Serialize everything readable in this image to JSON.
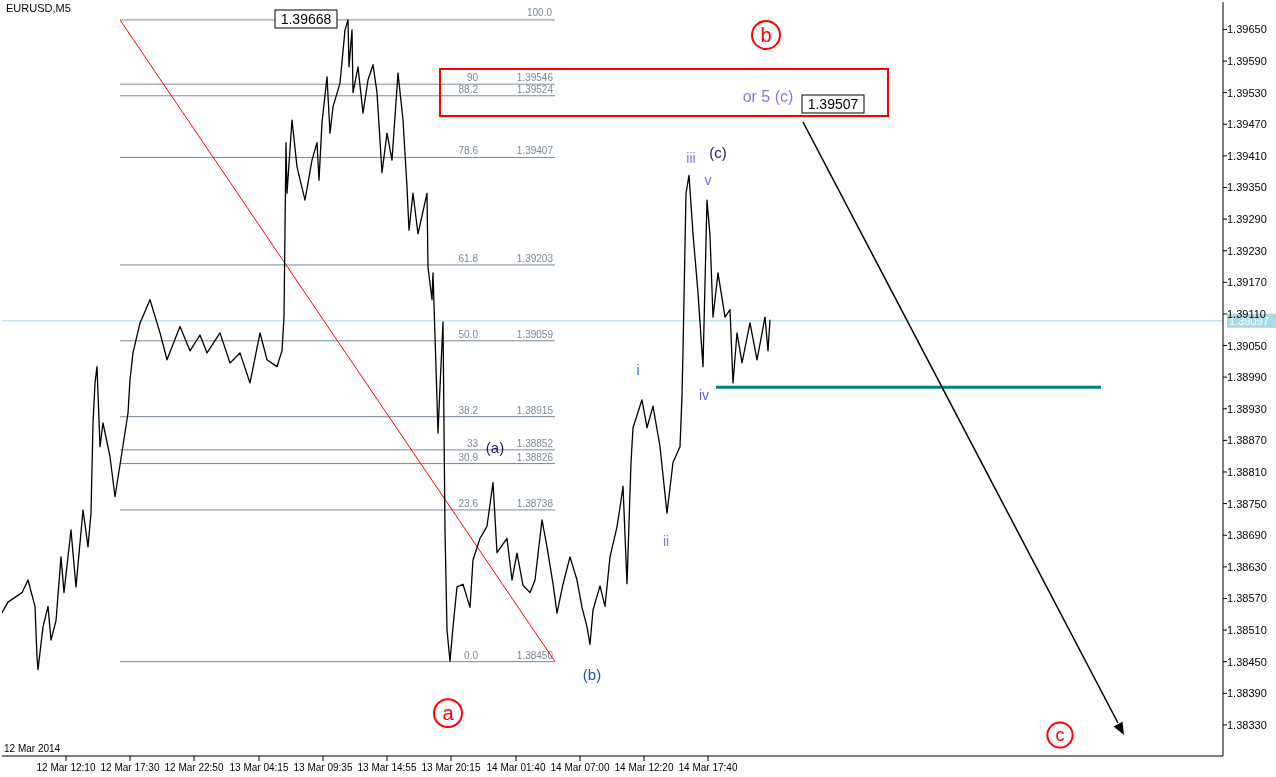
{
  "chart_data": {
    "type": "line",
    "title": "EURUSD,M5",
    "xlim": [
      "2014-03-12T06:50",
      "2014-03-16T12:35"
    ],
    "xticks": [
      {
        "value": "2014-03-12T12:10",
        "label": "12 Mar 12:10"
      },
      {
        "value": "2014-03-12T17:30",
        "label": "12 Mar 17:30"
      },
      {
        "value": "2014-03-12T22:50",
        "label": "12 Mar 22:50"
      },
      {
        "value": "2014-03-13T04:15",
        "label": "13 Mar 04:15"
      },
      {
        "value": "2014-03-13T09:35",
        "label": "13 Mar 09:35"
      },
      {
        "value": "2014-03-13T14:55",
        "label": "13 Mar 14:55"
      },
      {
        "value": "2014-03-13T20:15",
        "label": "13 Mar 20:15"
      },
      {
        "value": "2014-03-14T01:40",
        "label": "14 Mar 01:40"
      },
      {
        "value": "2014-03-14T07:00",
        "label": "14 Mar 07:00"
      },
      {
        "value": "2014-03-14T12:20",
        "label": "14 Mar 12:20"
      },
      {
        "value": "2014-03-14T17:40",
        "label": "14 Mar 17:40"
      }
    ],
    "ylim": [
      1.38271,
      1.39702
    ],
    "yticks": [
      {
        "value": 1.3833,
        "label": "1.38330"
      },
      {
        "value": 1.3839,
        "label": "1.38390"
      },
      {
        "value": 1.3845,
        "label": "1.38450"
      },
      {
        "value": 1.3851,
        "label": "1.38510"
      },
      {
        "value": 1.3857,
        "label": "1.38570"
      },
      {
        "value": 1.3863,
        "label": "1.38630"
      },
      {
        "value": 1.3869,
        "label": "1.38690"
      },
      {
        "value": 1.3875,
        "label": "1.38750"
      },
      {
        "value": 1.3881,
        "label": "1.38810"
      },
      {
        "value": 1.3887,
        "label": "1.38870"
      },
      {
        "value": 1.3893,
        "label": "1.38930"
      },
      {
        "value": 1.3899,
        "label": "1.38990"
      },
      {
        "value": 1.3905,
        "label": "1.39050"
      },
      {
        "value": 1.3911,
        "label": "1.39110"
      },
      {
        "value": 1.3917,
        "label": "1.39170"
      },
      {
        "value": 1.3923,
        "label": "1.39230"
      },
      {
        "value": 1.3929,
        "label": "1.39290"
      },
      {
        "value": 1.3935,
        "label": "1.39350"
      },
      {
        "value": 1.3941,
        "label": "1.39410"
      },
      {
        "value": 1.3947,
        "label": "1.39470"
      },
      {
        "value": 1.3953,
        "label": "1.39530"
      },
      {
        "value": 1.3959,
        "label": "1.39590"
      },
      {
        "value": 1.3965,
        "label": "1.39650"
      }
    ],
    "series": [
      {
        "color": "#add8e6",
        "x": [
          "2014-03-12T06:50",
          "2014-03-16T12:35"
        ],
        "values": [
          1.39097,
          1.39097
        ]
      },
      {
        "color": "#ff0000",
        "x": [
          "2014-03-12T16:40",
          "2014-03-14T04:55"
        ],
        "values": [
          1.39668,
          1.3845
        ]
      },
      {
        "color": "#008080",
        "x": [
          "2014-03-14T18:20",
          "2014-03-16T02:25"
        ],
        "values": [
          1.38971,
          1.38971
        ]
      },
      {
        "color": "#000000",
        "x": [
          "2014-03-12T06:50",
          "2014-03-12T07:20",
          "2014-03-12T08:30",
          "2014-03-12T09:00",
          "2014-03-12T09:35",
          "2014-03-12T09:45",
          "2014-03-12T09:50",
          "2014-03-12T10:15",
          "2014-03-12T10:40",
          "2014-03-12T10:55",
          "2014-03-12T11:20",
          "2014-03-12T11:45",
          "2014-03-12T12:00",
          "2014-03-12T12:35",
          "2014-03-12T12:45",
          "2014-03-12T13:00",
          "2014-03-12T13:35",
          "2014-03-12T14:00",
          "2014-03-12T14:15",
          "2014-03-12T14:25",
          "2014-03-12T14:35",
          "2014-03-12T14:45",
          "2014-03-12T15:00",
          "2014-03-12T15:15",
          "2014-03-12T15:50",
          "2014-03-12T16:15",
          "2014-03-12T16:50",
          "2014-03-12T17:20",
          "2014-03-12T17:30",
          "2014-03-12T17:45",
          "2014-03-12T18:20",
          "2014-03-12T19:10",
          "2014-03-12T20:00",
          "2014-03-12T20:35",
          "2014-03-12T21:40",
          "2014-03-12T22:30",
          "2014-03-12T23:20",
          "2014-03-12T23:55",
          "2014-03-13T01:00",
          "2014-03-13T01:50",
          "2014-03-13T02:40",
          "2014-03-13T03:30",
          "2014-03-13T04:20",
          "2014-03-13T04:55",
          "2014-03-13T05:45",
          "2014-03-13T06:10",
          "2014-03-13T06:20",
          "2014-03-13T06:30",
          "2014-03-13T06:35",
          "2014-03-13T07:00",
          "2014-03-13T07:25",
          "2014-03-13T08:05",
          "2014-03-13T08:40",
          "2014-03-13T09:05",
          "2014-03-13T09:15",
          "2014-03-13T09:30",
          "2014-03-13T09:55",
          "2014-03-13T10:10",
          "2014-03-13T10:25",
          "2014-03-13T11:00",
          "2014-03-13T11:25",
          "2014-03-13T11:40",
          "2014-03-13T11:45",
          "2014-03-13T12:00",
          "2014-03-13T12:05",
          "2014-03-13T12:30",
          "2014-03-13T12:55",
          "2014-03-13T13:20",
          "2014-03-13T13:45",
          "2014-03-13T14:05",
          "2014-03-13T14:30",
          "2014-03-13T14:55",
          "2014-03-13T15:20",
          "2014-03-13T15:50",
          "2014-03-13T16:15",
          "2014-03-13T16:35",
          "2014-03-13T16:45",
          "2014-03-13T17:05",
          "2014-03-13T17:30",
          "2014-03-13T18:15",
          "2014-03-13T18:20",
          "2014-03-13T18:40",
          "2014-03-13T18:45",
          "2014-03-13T19:05",
          "2014-03-13T19:10",
          "2014-03-13T19:20",
          "2014-03-13T19:35",
          "2014-03-13T19:45",
          "2014-03-13T19:55",
          "2014-03-13T20:10",
          "2014-03-13T20:25",
          "2014-03-13T20:45",
          "2014-03-13T21:15",
          "2014-03-13T21:50",
          "2014-03-13T22:05",
          "2014-03-13T22:40",
          "2014-03-13T23:15",
          "2014-03-13T23:45",
          "2014-03-14T00:05",
          "2014-03-14T00:55",
          "2014-03-14T01:20",
          "2014-03-14T01:45",
          "2014-03-14T02:15",
          "2014-03-14T02:50",
          "2014-03-14T03:15",
          "2014-03-14T03:50",
          "2014-03-14T04:15",
          "2014-03-14T04:45",
          "2014-03-14T05:05",
          "2014-03-14T05:35",
          "2014-03-14T06:10",
          "2014-03-14T06:45",
          "2014-03-14T07:10",
          "2014-03-14T07:35",
          "2014-03-14T07:50",
          "2014-03-14T08:05",
          "2014-03-14T08:40",
          "2014-03-14T09:05",
          "2014-03-14T09:30",
          "2014-03-14T10:05",
          "2014-03-14T10:20",
          "2014-03-14T10:35",
          "2014-03-14T10:55",
          "2014-03-14T11:15",
          "2014-03-14T11:25",
          "2014-03-14T12:10",
          "2014-03-14T12:35",
          "2014-03-14T13:05",
          "2014-03-14T13:40",
          "2014-03-14T14:15",
          "2014-03-14T14:45",
          "2014-03-14T15:20",
          "2014-03-14T15:30",
          "2014-03-14T15:35",
          "2014-03-14T15:50",
          "2014-03-14T16:05",
          "2014-03-14T16:25",
          "2014-03-14T16:50",
          "2014-03-14T17:15",
          "2014-03-14T17:35",
          "2014-03-14T17:50",
          "2014-03-14T18:05",
          "2014-03-14T18:30",
          "2014-03-14T19:05",
          "2014-03-14T19:30",
          "2014-03-14T19:45",
          "2014-03-14T20:05",
          "2014-03-14T20:30",
          "2014-03-14T21:10",
          "2014-03-14T21:45",
          "2014-03-14T22:25",
          "2014-03-14T22:40",
          "2014-03-14T22:50"
        ],
        "values": [
          1.38543,
          1.38563,
          1.38581,
          1.38605,
          1.38555,
          1.38459,
          1.38435,
          1.38516,
          1.38555,
          1.38491,
          1.38528,
          1.38649,
          1.38581,
          1.387,
          1.38656,
          1.38592,
          1.38738,
          1.38668,
          1.38732,
          1.38903,
          1.38979,
          1.3901,
          1.38858,
          1.38903,
          1.38839,
          1.38763,
          1.38848,
          1.38922,
          1.38985,
          1.39036,
          1.39093,
          1.39137,
          1.39074,
          1.39023,
          1.39086,
          1.3904,
          1.3907,
          1.39036,
          1.39074,
          1.39017,
          1.39036,
          1.38979,
          1.39074,
          1.39023,
          1.3901,
          1.3904,
          1.39104,
          1.39435,
          1.39339,
          1.39478,
          1.39389,
          1.39326,
          1.39402,
          1.39435,
          1.39364,
          1.39473,
          1.3956,
          1.39453,
          1.39503,
          1.39548,
          1.39649,
          1.39668,
          1.39579,
          1.39649,
          1.3953,
          1.39579,
          1.39491,
          1.39554,
          1.39583,
          1.3953,
          1.39378,
          1.39453,
          1.39402,
          1.39567,
          1.39478,
          1.39351,
          1.39269,
          1.39339,
          1.39262,
          1.39339,
          1.39199,
          1.39137,
          1.39188,
          1.38947,
          1.38884,
          1.38971,
          1.39095,
          1.387,
          1.3851,
          1.38451,
          1.38516,
          1.38592,
          1.38597,
          1.38553,
          1.38643,
          1.38684,
          1.38707,
          1.3879,
          1.38657,
          1.38684,
          1.38605,
          1.38656,
          1.38595,
          1.38581,
          1.38605,
          1.38719,
          1.38668,
          1.38598,
          1.38542,
          1.38597,
          1.38649,
          1.38605,
          1.38553,
          1.38516,
          1.38483,
          1.38548,
          1.38594,
          1.38555,
          1.38649,
          1.38706,
          1.38743,
          1.38783,
          1.38598,
          1.38828,
          1.38894,
          1.38947,
          1.38894,
          1.38935,
          1.38858,
          1.38732,
          1.38828,
          1.38858,
          1.38955,
          1.3904,
          1.39339,
          1.39373,
          1.39262,
          1.3915,
          1.3901,
          1.39326,
          1.39259,
          1.39104,
          1.39188,
          1.39104,
          1.39118,
          1.38979,
          1.39074,
          1.39017,
          1.39093,
          1.39023,
          1.39104,
          1.3904,
          1.39099
        ]
      }
    ],
    "ref_lines": [
      {
        "axis": "y",
        "value": 1.39668,
        "color": "#778899"
      },
      {
        "axis": "y",
        "value": 1.39546,
        "label": "90 1.39546",
        "color": "#778899"
      },
      {
        "axis": "y",
        "value": 1.39524,
        "label": "88.2 1.39524",
        "color": "#778899"
      },
      {
        "axis": "y",
        "value": 1.39407,
        "label": "78.6 1.39407",
        "color": "#778899"
      },
      {
        "axis": "y",
        "value": 1.39203,
        "label": "61.8 1.39203",
        "color": "#778899"
      },
      {
        "axis": "y",
        "value": 1.39059,
        "label": "50.0 1.39059",
        "color": "#778899"
      },
      {
        "axis": "y",
        "value": 1.38915,
        "label": "38.2 1.38915",
        "color": "#778899"
      },
      {
        "axis": "y",
        "value": 1.38852,
        "label": "33 1.38852",
        "color": "#778899"
      },
      {
        "axis": "y",
        "value": 1.38826,
        "label": "30.9 1.38826",
        "color": "#778899"
      },
      {
        "axis": "y",
        "value": 1.38738,
        "label": "23.6 1.38738",
        "color": "#778899"
      },
      {
        "axis": "y",
        "value": 1.3845,
        "label": "0.0 1.38450",
        "color": "#778899"
      }
    ],
    "annotations": [
      "1.39668",
      "1.39507",
      "b",
      {
        "text": "a",
        "x": "2014-03-13T20:10",
        "y": 1.38451
      },
      "c",
      "or 5 (c)",
      {
        "text": "iii",
        "x": "2014-03-14T16:05",
        "y": 1.39373
      },
      "(c)",
      {
        "text": "v",
        "x": "2014-03-14T17:35",
        "y": 1.39326
      },
      {
        "text": "i",
        "x": "2014-03-14T12:10",
        "y": 1.38947
      },
      {
        "text": "iv",
        "x": "2014-03-14T17:15",
        "y": 1.3901
      },
      {
        "text": "ii",
        "x": "2014-03-14T14:15",
        "y": 1.38732
      },
      {
        "text": "(a)",
        "x": "2014-03-13T23:45",
        "y": 1.3879
      },
      {
        "text": "(b)",
        "x": "2014-03-14T07:50",
        "y": 1.38483
      },
      {
        "text": "1.39097",
        "x": "2014-03-16T12:35",
        "y": 1.39097
      },
      "100.0",
      "12 Mar 2014"
    ]
  }
}
